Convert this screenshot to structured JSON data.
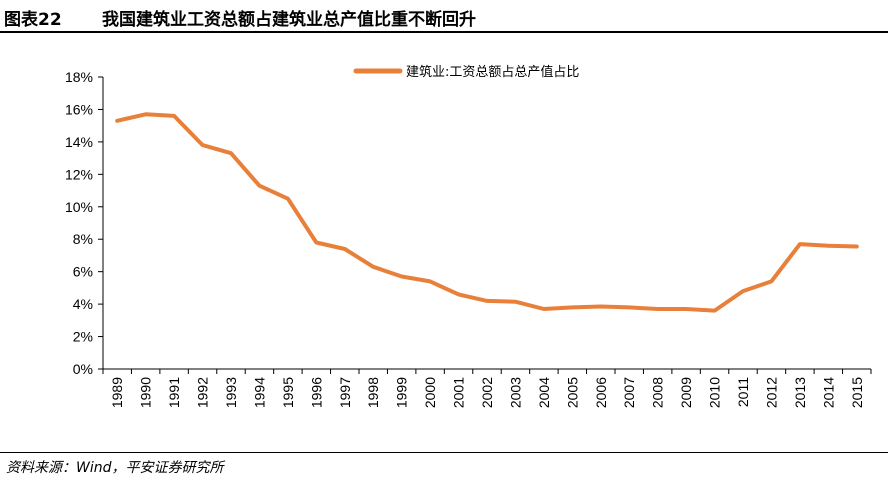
{
  "header": {
    "figure_label": "图表22",
    "title": "我国建筑业工资总额占建筑业总产值比重不断回升"
  },
  "footer": {
    "source": "资料来源：Wind，平安证券研究所"
  },
  "chart_data": {
    "type": "line",
    "title": "我国建筑业工资总额占建筑业总产值比重不断回升",
    "xlabel": "",
    "ylabel": "",
    "categories": [
      "1989",
      "1990",
      "1991",
      "1992",
      "1993",
      "1994",
      "1995",
      "1996",
      "1997",
      "1998",
      "1999",
      "2000",
      "2001",
      "2002",
      "2003",
      "2004",
      "2005",
      "2006",
      "2007",
      "2008",
      "2009",
      "2010",
      "2011",
      "2012",
      "2013",
      "2014",
      "2015"
    ],
    "series": [
      {
        "name": "建筑业:工资总额占总产值占比",
        "color": "#E8803A",
        "values": [
          15.3,
          15.7,
          15.6,
          13.8,
          13.3,
          11.3,
          10.5,
          7.8,
          7.4,
          6.3,
          5.7,
          5.4,
          4.6,
          4.2,
          4.15,
          3.7,
          3.8,
          3.85,
          3.8,
          3.7,
          3.7,
          3.6,
          4.8,
          5.4,
          7.7,
          7.6,
          7.55
        ]
      }
    ],
    "ylim": [
      0,
      18
    ],
    "yticks": [
      0,
      2,
      4,
      6,
      8,
      10,
      12,
      14,
      16,
      18
    ],
    "ytick_labels": [
      "0%",
      "2%",
      "4%",
      "6%",
      "8%",
      "10%",
      "12%",
      "14%",
      "16%",
      "18%"
    ],
    "legend_position": "top-center",
    "grid": false
  }
}
